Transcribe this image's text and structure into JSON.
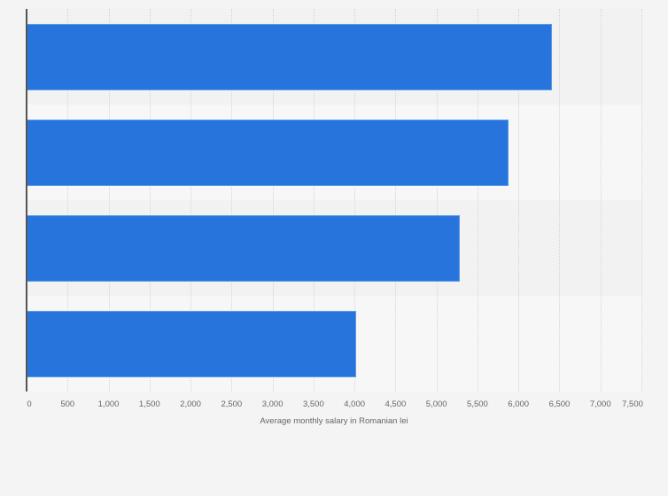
{
  "chart_data": {
    "type": "bar",
    "orientation": "horizontal",
    "title": "",
    "categories": [
      "",
      "",
      "",
      ""
    ],
    "values": [
      6410,
      5880,
      5285,
      4020
    ],
    "xlabel": "Average monthly salary in Romanian lei",
    "ylabel": "",
    "xlim": [
      0,
      7500
    ],
    "x_ticks": [
      "0",
      "500",
      "1,000",
      "1,500",
      "2,000",
      "2,500",
      "3,000",
      "3,500",
      "4,000",
      "4,500",
      "5,000",
      "5,500",
      "6,000",
      "6,500",
      "7,000",
      "7,500"
    ],
    "grid": true,
    "legend": null,
    "bar_color": "#2775dc"
  }
}
